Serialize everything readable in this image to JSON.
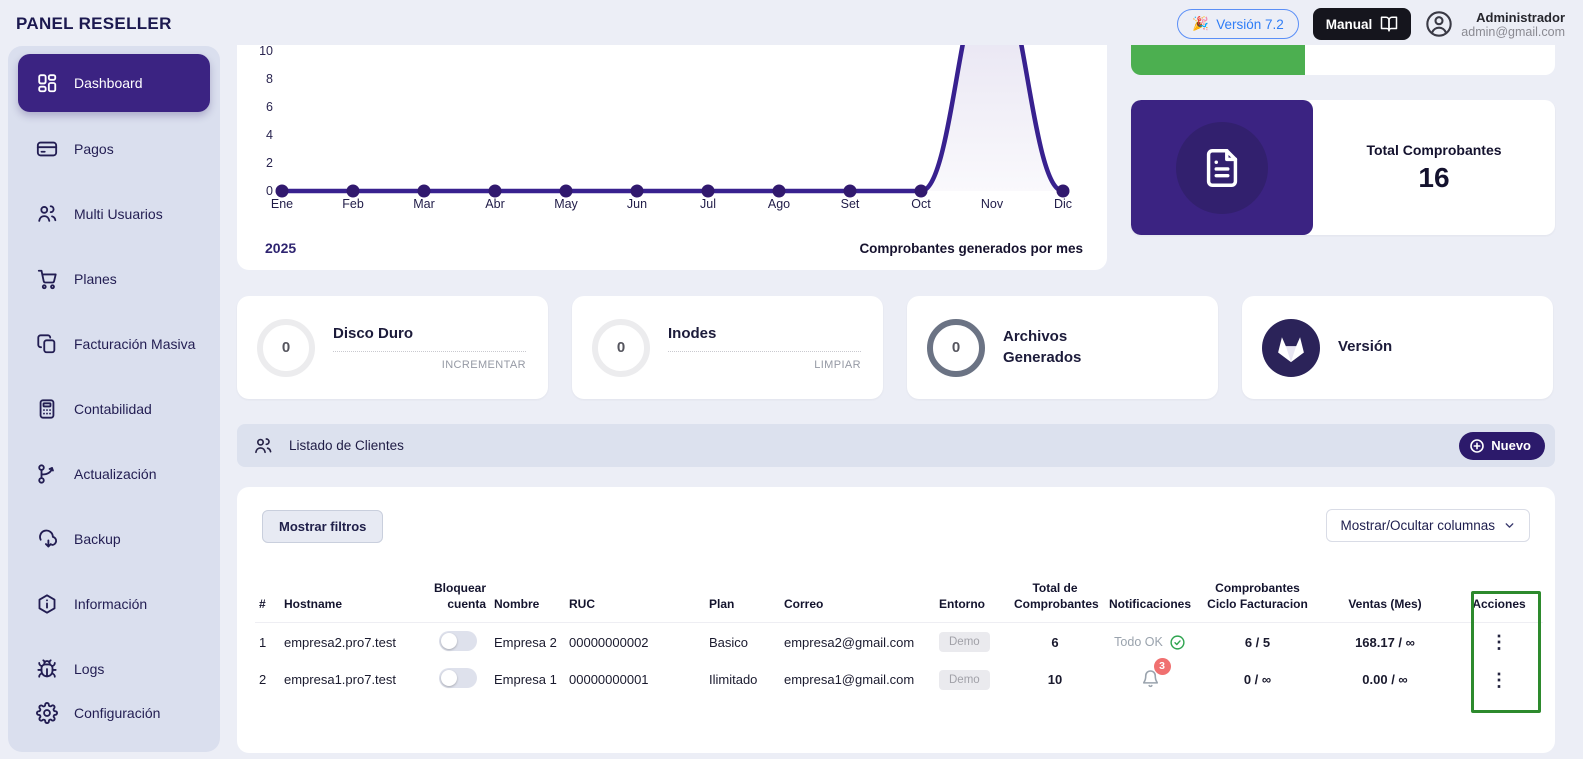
{
  "header": {
    "brand": "PANEL RESELLER",
    "version_button": "Versión 7.2",
    "manual_button": "Manual",
    "user_name": "Administrador",
    "user_email": "admin@gmail.com"
  },
  "sidebar": {
    "items": [
      {
        "label": "Dashboard",
        "icon": "dashboard-grid-icon",
        "active": true
      },
      {
        "label": "Pagos",
        "icon": "credit-card-icon",
        "active": false
      },
      {
        "label": "Multi Usuarios",
        "icon": "users-icon",
        "active": false
      },
      {
        "label": "Planes",
        "icon": "cart-icon",
        "active": false
      },
      {
        "label": "Facturación Masiva",
        "icon": "documents-icon",
        "active": false
      },
      {
        "label": "Contabilidad",
        "icon": "calculator-icon",
        "active": false
      },
      {
        "label": "Actualización",
        "icon": "git-merge-icon",
        "active": false
      },
      {
        "label": "Backup",
        "icon": "cloud-download-icon",
        "active": false
      },
      {
        "label": "Información",
        "icon": "info-hexagon-icon",
        "active": false
      },
      {
        "label": "Logs",
        "icon": "bug-icon",
        "active": false
      },
      {
        "label": "Configuración",
        "icon": "gear-icon",
        "active": false
      }
    ]
  },
  "chart_data": {
    "type": "line",
    "title": "Comprobantes generados por mes",
    "year_label": "2025",
    "categories": [
      "Ene",
      "Feb",
      "Mar",
      "Abr",
      "May",
      "Jun",
      "Jul",
      "Ago",
      "Set",
      "Oct",
      "Nov",
      "Dic"
    ],
    "series": [
      {
        "name": "Comprobantes generados por mes",
        "values": [
          0,
          0,
          0,
          0,
          0,
          0,
          0,
          0,
          0,
          0,
          16,
          0
        ]
      }
    ],
    "yticks": [
      0,
      2,
      4,
      6,
      8,
      10
    ],
    "visible_y_range": [
      0,
      10
    ],
    "grid": false,
    "legend": "none",
    "line_color": "#38218f",
    "dot_color": "#31196e"
  },
  "summary": {
    "progress_percent": 41,
    "progress_color": "#4caf50",
    "total_label": "Total Comprobantes",
    "total_value": "16"
  },
  "stat_cards": [
    {
      "value": "0",
      "title": "Disco Duro",
      "action": "INCREMENTAR"
    },
    {
      "value": "0",
      "title": "Inodes",
      "action": "LIMPIAR"
    },
    {
      "value": "0",
      "title": "Archivos Generados",
      "action": ""
    },
    {
      "value": "",
      "title": "Versión",
      "action": ""
    }
  ],
  "clients": {
    "section_title": "Listado de Clientes",
    "new_button": "Nuevo",
    "filters_button": "Mostrar filtros",
    "columns_button": "Mostrar/Ocultar columnas",
    "headers": [
      "#",
      "Hostname",
      "Bloquear cuenta",
      "Nombre",
      "RUC",
      "Plan",
      "Correo",
      "Entorno",
      "Total de Comprobantes",
      "Notificaciones",
      "Comprobantes Ciclo Facturacion",
      "Ventas (Mes)",
      "Acciones"
    ],
    "rows": [
      {
        "num": "1",
        "hostname": "empresa2.pro7.test",
        "blocked": false,
        "name": "Empresa 2",
        "ruc": "00000000002",
        "plan": "Basico",
        "email": "empresa2@gmail.com",
        "env": "Demo",
        "total": "6",
        "status_text": "Todo OK",
        "notif_count": "",
        "cycle": "6 / 5",
        "sales": "168.17 / ∞"
      },
      {
        "num": "2",
        "hostname": "empresa1.pro7.test",
        "blocked": false,
        "name": "Empresa 1",
        "ruc": "00000000001",
        "plan": "Ilimitado",
        "email": "empresa1@gmail.com",
        "env": "Demo",
        "total": "10",
        "status_text": "",
        "notif_count": "3",
        "cycle": "0 / ∞",
        "sales": "0.00 / ∞"
      }
    ]
  },
  "colors": {
    "accent_purple": "#3b2382",
    "page_background": "#eceef6",
    "sidebar_background": "#dadfee",
    "progress_green": "#4caf50",
    "highlight_box_green": "#2d8a2d",
    "notification_red": "#f07070",
    "check_green": "#2ea44f",
    "version_link_blue": "#2f7df6"
  }
}
